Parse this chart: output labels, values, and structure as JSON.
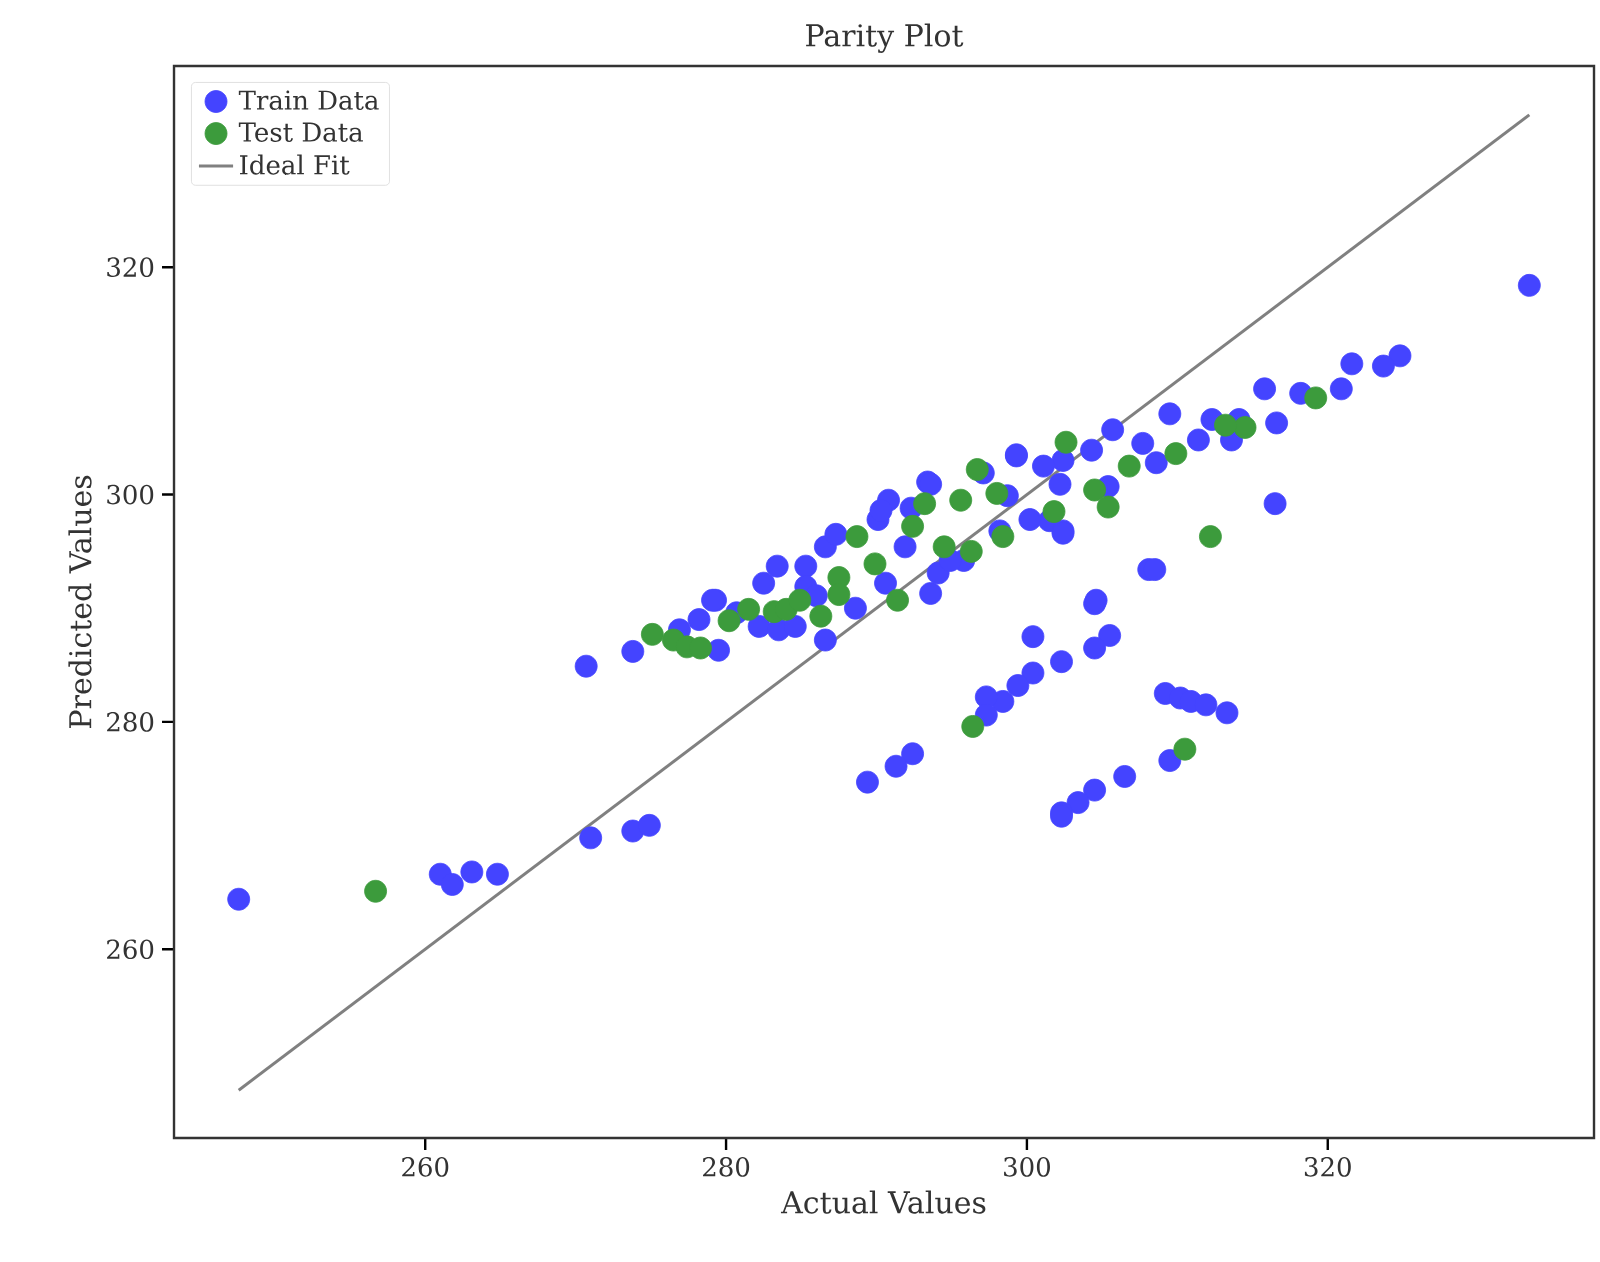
{
  "chart_data": {
    "type": "scatter",
    "title": "Parity Plot",
    "xlabel": "Actual Values",
    "ylabel": "Predicted Values",
    "xlim": [
      243.3,
      337.7
    ],
    "ylim": [
      243.4,
      337.7
    ],
    "xticks": [
      260,
      280,
      300,
      320
    ],
    "yticks": [
      260,
      280,
      300,
      320
    ],
    "grid": false,
    "legend": "top left",
    "series": [
      {
        "name": "Train Data",
        "color": "#4444ff",
        "marker": "circle",
        "x": [
          247.6,
          261.0,
          261.8,
          263.1,
          264.8,
          270.7,
          271.0,
          273.8,
          274.9,
          273.8,
          308.1,
          308.5,
          304.5,
          304.6,
          300.4,
          305.5,
          304.5,
          302.3,
          300.4,
          299.4,
          298.4,
          297.3,
          297.3,
          292.4,
          291.3,
          289.4,
          309.2,
          310.2,
          310.9,
          311.9,
          313.3,
          309.5,
          306.5,
          304.5,
          303.4,
          302.3,
          302.3,
          324.8,
          323.7,
          321.6,
          320.9,
          318.2,
          315.8,
          316.6,
          316.5,
          309.5,
          314.1,
          313.6,
          312.3,
          311.4,
          308.6,
          305.4,
          305.7,
          304.3,
          307.7,
          299.3,
          302.4,
          301.5,
          302.4,
          276.9,
          279.5,
          278.2,
          279.3,
          280.7,
          282.2,
          282.5,
          283.4,
          283.5,
          284.6,
          285.3,
          285.3,
          286.6,
          286.6,
          287.3,
          288.6,
          290.1,
          290.8,
          290.6,
          293.6,
          292.3,
          293.4,
          291.9,
          294.1,
          295.8,
          297.1,
          298.7,
          299.3,
          300.2,
          301.1,
          302.4,
          286.0,
          293.6,
          290.3,
          302.2,
          298.2,
          294.9,
          279.1,
          333.4
        ],
        "values": [
          264.4,
          266.6,
          265.7,
          266.8,
          266.6,
          284.9,
          269.8,
          270.4,
          270.9,
          286.2,
          293.4,
          293.4,
          290.4,
          290.7,
          287.5,
          287.6,
          286.5,
          285.3,
          284.3,
          283.2,
          281.8,
          282.2,
          280.6,
          277.2,
          276.1,
          274.7,
          282.5,
          282.1,
          281.8,
          281.5,
          280.8,
          276.6,
          275.2,
          274.0,
          272.9,
          272.0,
          271.7,
          312.2,
          311.3,
          311.5,
          309.3,
          308.9,
          309.3,
          306.3,
          299.2,
          307.1,
          306.6,
          304.8,
          306.6,
          304.8,
          302.8,
          300.7,
          305.7,
          303.9,
          304.5,
          303.4,
          303.0,
          297.7,
          296.8,
          288.1,
          286.3,
          289.0,
          290.7,
          289.6,
          288.4,
          292.2,
          293.7,
          288.1,
          288.4,
          293.7,
          291.9,
          287.2,
          295.4,
          296.5,
          290.0,
          297.8,
          299.5,
          292.2,
          291.3,
          298.8,
          301.1,
          295.4,
          293.1,
          294.2,
          301.9,
          299.9,
          303.5,
          297.8,
          302.5,
          296.6,
          291.1,
          300.9,
          298.6,
          300.9,
          296.8,
          294.2,
          290.7,
          318.4
        ]
      },
      {
        "name": "Test Data",
        "color": "#3c9b3c",
        "marker": "circle",
        "x": [
          256.7,
          296.4,
          310.5,
          319.2,
          312.2,
          314.5,
          313.2,
          309.9,
          306.8,
          305.4,
          302.6,
          304.5,
          298.0,
          275.1,
          276.5,
          277.4,
          278.3,
          280.2,
          281.5,
          283.2,
          284.0,
          284.9,
          286.3,
          287.5,
          287.5,
          288.7,
          289.9,
          291.4,
          292.4,
          293.2,
          294.5,
          296.3,
          295.6,
          296.7,
          298.4,
          301.8
        ],
        "values": [
          265.1,
          279.6,
          277.6,
          308.5,
          296.3,
          305.9,
          306.1,
          303.6,
          302.5,
          298.9,
          304.6,
          300.4,
          300.1,
          287.7,
          287.2,
          286.6,
          286.5,
          288.9,
          289.9,
          289.7,
          289.9,
          290.7,
          289.3,
          292.7,
          291.2,
          296.3,
          293.9,
          290.7,
          297.2,
          299.2,
          295.4,
          295.0,
          299.5,
          302.2,
          296.3,
          298.5
        ]
      },
      {
        "name": "Ideal Fit",
        "type": "line",
        "color": "#808080",
        "marker": "none",
        "x": [
          247.6,
          333.4
        ],
        "values": [
          247.6,
          333.4
        ]
      }
    ]
  }
}
